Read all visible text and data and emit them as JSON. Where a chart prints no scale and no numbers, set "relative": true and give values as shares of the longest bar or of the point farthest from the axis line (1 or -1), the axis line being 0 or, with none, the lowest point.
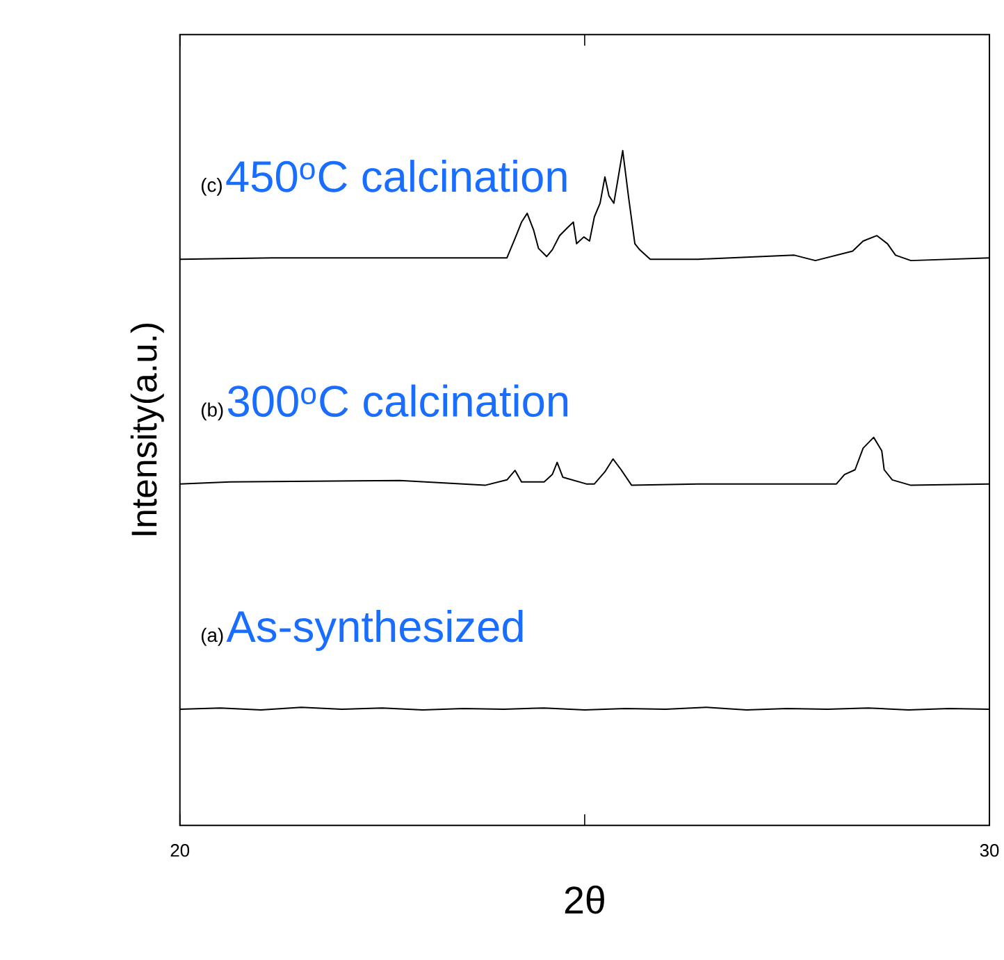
{
  "chart_data": {
    "type": "line",
    "relative": true,
    "xlabel": "2θ",
    "ylabel": "Intensity(a.u.)",
    "xlim": [
      20,
      30
    ],
    "xticks": [
      20,
      {
        "value": 25,
        "label": null
      },
      30
    ],
    "annotations": [
      "(a)",
      "(b)",
      "(c)"
    ],
    "series": [
      {
        "name": "As-synthesized",
        "color": "#000000",
        "x": [
          20.0,
          20.5,
          21.0,
          21.5,
          22.0,
          22.5,
          23.0,
          23.5,
          24.0,
          24.5,
          25.0,
          25.5,
          26.0,
          26.5,
          27.0,
          27.5,
          28.0,
          28.5,
          29.0,
          29.5,
          30.0
        ],
        "values": [
          0.172,
          0.174,
          0.171,
          0.175,
          0.172,
          0.174,
          0.171,
          0.173,
          0.172,
          0.174,
          0.171,
          0.173,
          0.172,
          0.175,
          0.171,
          0.173,
          0.172,
          0.174,
          0.171,
          0.173,
          0.172
        ]
      },
      {
        "name": "300$^{o}$C calcination",
        "color": "#000000",
        "x": [
          20.0,
          20.62,
          22.72,
          23.77,
          24.04,
          24.14,
          24.22,
          24.5,
          24.6,
          24.66,
          24.73,
          25.02,
          25.12,
          25.25,
          25.35,
          25.45,
          25.58,
          26.4,
          28.11,
          28.21,
          28.34,
          28.44,
          28.57,
          28.67,
          28.7,
          28.8,
          29.03,
          30.0
        ],
        "values": [
          0.506,
          0.509,
          0.511,
          0.504,
          0.512,
          0.526,
          0.509,
          0.509,
          0.52,
          0.538,
          0.516,
          0.506,
          0.506,
          0.524,
          0.543,
          0.527,
          0.504,
          0.506,
          0.506,
          0.52,
          0.527,
          0.559,
          0.575,
          0.555,
          0.527,
          0.512,
          0.504,
          0.506
        ]
      },
      {
        "name": "450$^{o}$C calcination",
        "color": "#000000",
        "x": [
          20.0,
          21.14,
          24.04,
          24.14,
          24.22,
          24.29,
          24.37,
          24.43,
          24.53,
          24.6,
          24.69,
          24.79,
          24.86,
          24.9,
          24.99,
          25.06,
          25.12,
          25.19,
          25.25,
          25.3,
          25.36,
          25.41,
          25.47,
          25.54,
          25.62,
          25.68,
          25.81,
          26.4,
          27.59,
          27.85,
          28.31,
          28.44,
          28.61,
          28.74,
          28.84,
          29.03,
          30.0
        ],
        "values": [
          0.839,
          0.841,
          0.841,
          0.87,
          0.894,
          0.907,
          0.882,
          0.855,
          0.843,
          0.853,
          0.874,
          0.886,
          0.894,
          0.862,
          0.872,
          0.866,
          0.902,
          0.922,
          0.961,
          0.933,
          0.922,
          0.957,
          1.0,
          0.933,
          0.862,
          0.853,
          0.839,
          0.839,
          0.845,
          0.837,
          0.851,
          0.866,
          0.874,
          0.862,
          0.845,
          0.837,
          0.841
        ]
      }
    ]
  }
}
